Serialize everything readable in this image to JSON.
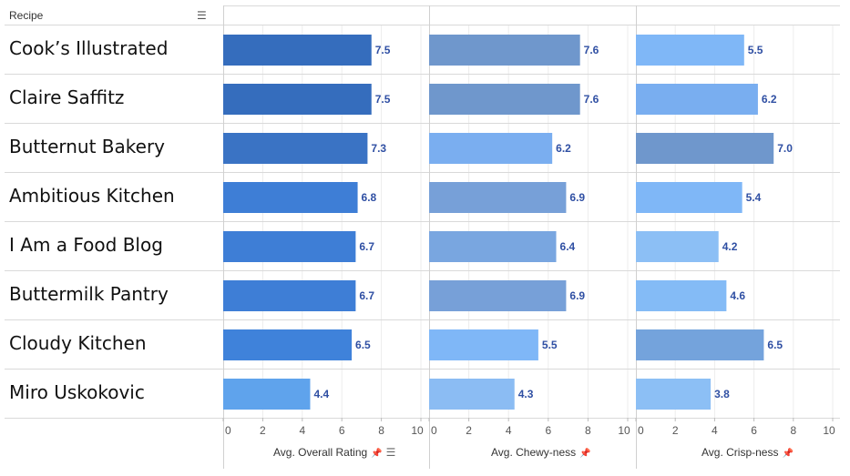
{
  "header": {
    "column_title": "Recipe",
    "sort_icon": "sort-icon"
  },
  "chart_data": {
    "type": "bar",
    "orientation": "horizontal",
    "categories": [
      "Cook’s Illustrated",
      "Claire Saffitz",
      "Butternut Bakery",
      "Ambitious Kitchen",
      "I Am a Food Blog",
      "Buttermilk Pantry",
      "Cloudy Kitchen",
      "Miro Uskokovic"
    ],
    "xlim": [
      0,
      10
    ],
    "ticks": [
      "0",
      "2",
      "4",
      "6",
      "8",
      "10"
    ],
    "grid": true,
    "series": [
      {
        "name": "Avg. Overall Rating",
        "values": [
          7.5,
          7.5,
          7.3,
          6.8,
          6.7,
          6.7,
          6.5,
          4.4
        ],
        "labels": [
          "7.5",
          "7.5",
          "7.3",
          "6.8",
          "6.7",
          "6.7",
          "6.5",
          "4.4"
        ],
        "colors": [
          "#356dbd",
          "#356dbd",
          "#3a73c4",
          "#3e7ed6",
          "#3e7ed6",
          "#3e7ed6",
          "#3f82da",
          "#5fa3ec"
        ]
      },
      {
        "name": "Avg. Chewy-ness",
        "values": [
          7.6,
          7.6,
          6.2,
          6.9,
          6.4,
          6.9,
          5.5,
          4.3
        ],
        "labels": [
          "7.6",
          "7.6",
          "6.2",
          "6.9",
          "6.4",
          "6.9",
          "5.5",
          "4.3"
        ],
        "colors": [
          "#6f97cc",
          "#6f97cc",
          "#7aaef0",
          "#77a0d8",
          "#79a6e0",
          "#77a0d8",
          "#7fb7f7",
          "#8bbcf3"
        ]
      },
      {
        "name": "Avg. Crisp-ness",
        "values": [
          5.5,
          6.2,
          7.0,
          5.4,
          4.2,
          4.6,
          6.5,
          3.8
        ],
        "labels": [
          "5.5",
          "6.2",
          "7.0",
          "5.4",
          "4.2",
          "4.6",
          "6.5",
          "3.8"
        ],
        "colors": [
          "#7fb7f7",
          "#79aef0",
          "#6f97cc",
          "#7fb7f7",
          "#8cbff5",
          "#84bbf6",
          "#74a3dc",
          "#8cbff5"
        ]
      }
    ],
    "label_color": "#2f4fa3"
  },
  "footer": {
    "pin_icon": "pin-icon",
    "sort_icon": "sort-icon"
  }
}
